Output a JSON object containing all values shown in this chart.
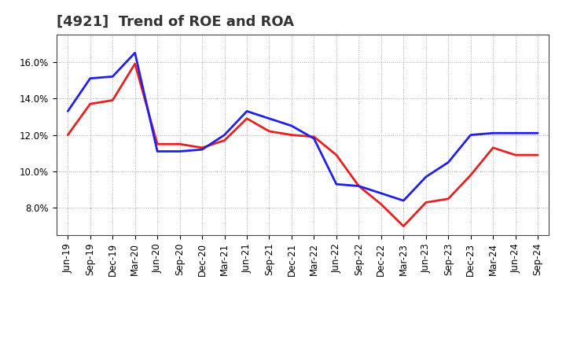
{
  "title": "[4921]  Trend of ROE and ROA",
  "labels": [
    "Jun-19",
    "Sep-19",
    "Dec-19",
    "Mar-20",
    "Jun-20",
    "Sep-20",
    "Dec-20",
    "Mar-21",
    "Jun-21",
    "Sep-21",
    "Dec-21",
    "Mar-22",
    "Jun-22",
    "Sep-22",
    "Dec-22",
    "Mar-23",
    "Jun-23",
    "Sep-23",
    "Dec-23",
    "Mar-24",
    "Jun-24",
    "Sep-24"
  ],
  "ROE": [
    12.0,
    13.7,
    13.9,
    15.9,
    11.5,
    11.5,
    11.3,
    11.7,
    12.9,
    12.2,
    12.0,
    11.9,
    10.9,
    9.2,
    8.2,
    7.0,
    8.3,
    8.5,
    9.8,
    11.3,
    10.9,
    10.9
  ],
  "ROA": [
    13.3,
    15.1,
    15.2,
    16.5,
    11.1,
    11.1,
    11.2,
    12.0,
    13.3,
    12.9,
    12.5,
    11.8,
    9.3,
    9.2,
    8.8,
    8.4,
    9.7,
    10.5,
    12.0,
    12.1,
    12.1,
    12.1
  ],
  "ROE_color": "#e82020",
  "ROA_color": "#2020e8",
  "ylim_min": 6.5,
  "ylim_max": 17.5,
  "yticks": [
    8.0,
    10.0,
    12.0,
    14.0,
    16.0
  ],
  "background_color": "#ffffff",
  "plot_bg_color": "#ffffff",
  "grid_color": "#aaaaaa",
  "linewidth": 2.0,
  "title_fontsize": 13,
  "tick_fontsize": 8.5,
  "legend_fontsize": 10
}
